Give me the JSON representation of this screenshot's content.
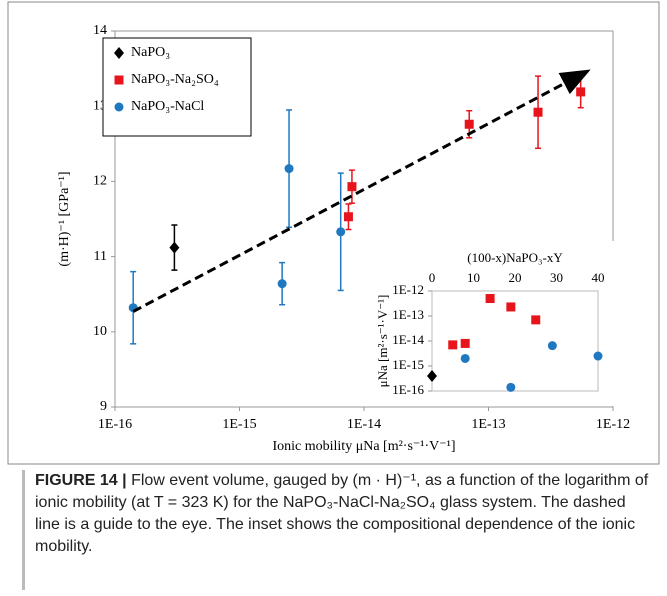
{
  "chart_data": [
    {
      "type": "scatter",
      "xlog": true,
      "xlabel": "Ionic mobility μNa  [m²·s⁻¹·V⁻¹]",
      "ylabel": "(m·H)⁻¹  [GPa⁻¹]",
      "xlim": [
        1e-16,
        1e-12
      ],
      "xticks": [
        {
          "value": 1e-16,
          "label": "1E-16"
        },
        {
          "value": 1e-15,
          "label": "1E-15"
        },
        {
          "value": 1e-14,
          "label": "1E-14"
        },
        {
          "value": 1e-13,
          "label": "1E-13"
        },
        {
          "value": 1e-12,
          "label": "1E-12"
        }
      ],
      "ylim": [
        9,
        14
      ],
      "yticks": [
        9,
        10,
        11,
        12,
        13,
        14
      ],
      "legend": "top-left",
      "series": [
        {
          "name": "NaPO₃",
          "color": "#000000",
          "marker": "diamond",
          "x": [
            3e-16
          ],
          "values": [
            11.12
          ],
          "errors": [
            0.3
          ]
        },
        {
          "name": "NaPO₃-Na₂SO₄",
          "color": "#e8141b",
          "marker": "square",
          "x": [
            7.5e-15,
            8e-15,
            7e-14,
            2.5e-13,
            5.5e-13
          ],
          "values": [
            11.53,
            11.93,
            12.76,
            12.92,
            13.19
          ],
          "errors": [
            0.17,
            0.22,
            0.18,
            0.48,
            0.21
          ]
        },
        {
          "name": "NaPO₃-NaCl",
          "color": "#1f78c1",
          "marker": "circle",
          "x": [
            1.4e-16,
            2.2e-15,
            2.5e-15,
            6.5e-15
          ],
          "values": [
            10.32,
            10.64,
            12.17,
            11.33
          ],
          "errors": [
            0.48,
            0.28,
            0.78,
            0.78
          ]
        }
      ]
    },
    {
      "type": "scatter",
      "ylog": true,
      "xlabel": "(100-x)NaPO₃-xY",
      "ylabel": "μNa  [m²·s⁻¹·V⁻¹]",
      "xlim": [
        0,
        40
      ],
      "xticks": [
        0,
        10,
        20,
        30,
        40
      ],
      "ylim": [
        1e-16,
        1e-12
      ],
      "yticks": [
        {
          "value": 1e-16,
          "label": "1E-16"
        },
        {
          "value": 1e-15,
          "label": "1E-15"
        },
        {
          "value": 1e-14,
          "label": "1E-14"
        },
        {
          "value": 1e-13,
          "label": "1E-13"
        },
        {
          "value": 1e-12,
          "label": "1E-12"
        }
      ],
      "series": [
        {
          "color": "#000000",
          "marker": "diamond",
          "x": [
            0
          ],
          "values": [
            4e-16
          ]
        },
        {
          "color": "#e8141b",
          "marker": "square",
          "x": [
            5,
            8,
            14,
            19,
            25
          ],
          "values": [
            7e-15,
            8e-15,
            5e-13,
            2.3e-13,
            7e-14
          ]
        },
        {
          "color": "#1f78c1",
          "marker": "circle",
          "x": [
            8,
            19,
            29,
            40
          ],
          "values": [
            2e-15,
            1.4e-16,
            6.5e-15,
            2.5e-15
          ]
        }
      ]
    }
  ],
  "caption": {
    "label": "FIGURE 14 |",
    "text": "Flow event volume, gauged by (m · H)⁻¹, as a function of the logarithm of ionic mobility (at T = 323 K) for the NaPO₃-NaCl-Na₂SO₄ glass system. The dashed line is a guide to the eye. The inset shows the compositional dependence of the ionic mobility."
  }
}
